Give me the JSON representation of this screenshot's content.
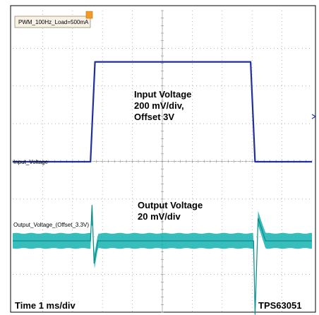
{
  "chart_data": {
    "type": "line",
    "title": "",
    "tag": "PWM_100Hz_Load=500mA",
    "annotations": {
      "input": [
        "Input Voltage",
        "200 mV/div,",
        "Offset 3V"
      ],
      "output": [
        "Output Voltage",
        "20 mV/div"
      ],
      "time": "Time 1 ms/div",
      "part": "TPS63051"
    },
    "time_div_ms": 1,
    "divisions": {
      "x": 10,
      "y": 8
    },
    "grid": true,
    "series": [
      {
        "name": "Input_Voltage",
        "color": "#1f2f9c",
        "volts_per_div": 0.2,
        "offset_v": 3,
        "t_ms": [
          0,
          2.6,
          2.75,
          7.95,
          8.1,
          10
        ],
        "v": [
          0,
          0,
          0.53,
          0.53,
          0,
          0
        ]
      },
      {
        "name": "Output_Voltage_(Offset_3.3V)",
        "color": "#15b2b2",
        "volts_per_div": 0.02,
        "offset_v": 3.3,
        "t_ms": [
          0,
          2.6,
          2.65,
          2.72,
          2.85,
          8.05,
          8.1,
          8.2,
          8.45,
          10
        ],
        "v": [
          0,
          0,
          0.019,
          -0.012,
          0,
          0,
          -0.039,
          0.012,
          0,
          0
        ],
        "ripple_mv": 8
      }
    ]
  }
}
